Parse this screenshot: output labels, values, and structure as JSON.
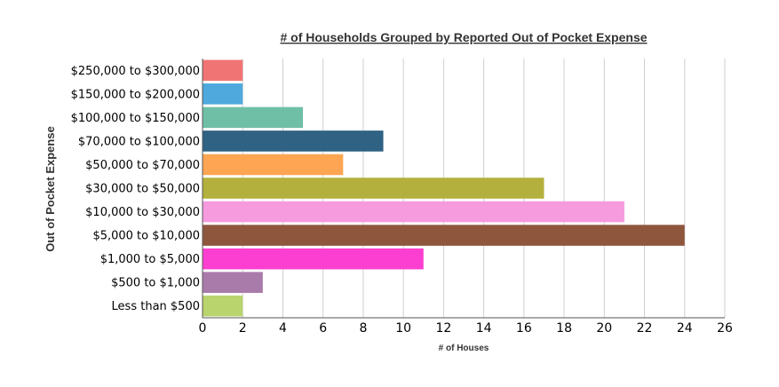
{
  "chart_data": {
    "type": "bar",
    "orientation": "horizontal",
    "title": "# of Households Grouped by Reported Out of Pocket Expense",
    "xlabel": "# of Houses",
    "ylabel": "Out of Pocket Expense",
    "xlim": [
      0,
      26
    ],
    "xticks": [
      "0",
      "2",
      "4",
      "6",
      "8",
      "10",
      "12",
      "14",
      "16",
      "18",
      "20",
      "22",
      "24",
      "26"
    ],
    "grid": true,
    "legend": "none",
    "categories": [
      "$250,000 to $300,000",
      "$150,000 to $200,000",
      "$100,000 to $150,000",
      "$70,000 to $100,000",
      "$50,000 to $70,000",
      "$30,000 to $50,000",
      "$10,000 to $30,000",
      "$5,000 to $10,000",
      "$1,000 to $5,000",
      "$500 to $1,000",
      "Less than $500"
    ],
    "values": [
      2,
      2,
      5,
      9,
      7,
      17,
      21,
      24,
      11,
      3,
      2
    ],
    "colors": [
      "#f07473",
      "#4fa9dc",
      "#6fbfa6",
      "#2f6283",
      "#fda553",
      "#b4b03d",
      "#f59bde",
      "#8f563e",
      "#fc3fd0",
      "#a97baa",
      "#b9d46c"
    ]
  }
}
